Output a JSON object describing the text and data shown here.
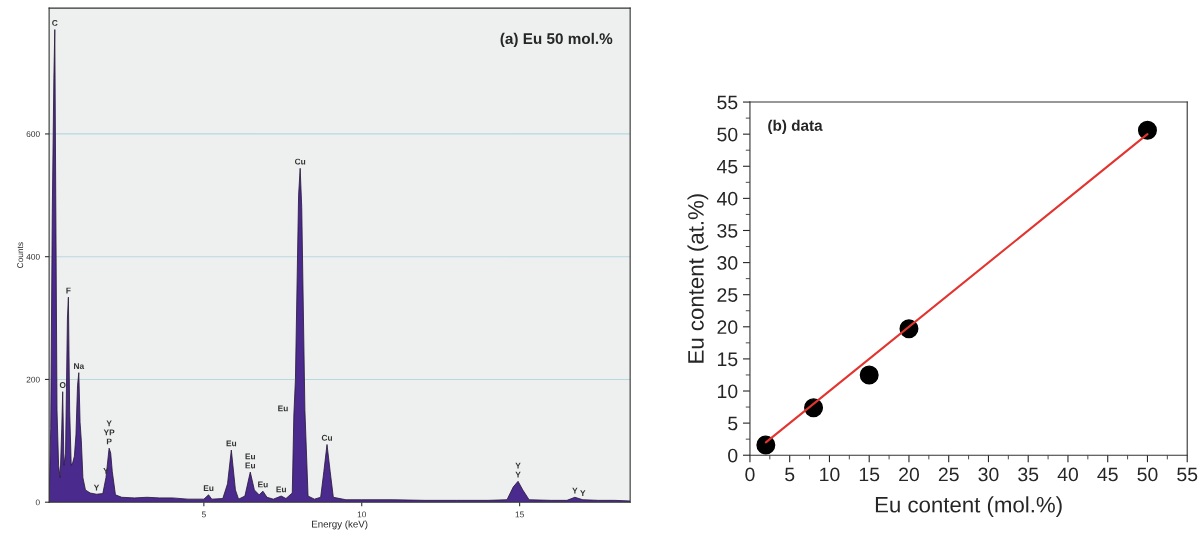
{
  "chart_data": [
    {
      "type": "area",
      "title": "(a) Eu 50 mol.%",
      "xlabel": "Energy (keV)",
      "ylabel": "Counts",
      "xlim": [
        0.1,
        18.5
      ],
      "ylim": [
        0,
        805
      ],
      "xticks": [
        5,
        10,
        15
      ],
      "yticks": [
        0,
        200,
        400,
        600
      ],
      "grid": "y",
      "series": [
        {
          "color": "#4a2a8c",
          "x": [
            0.1,
            0.15,
            0.2,
            0.25,
            0.28,
            0.31,
            0.35,
            0.4,
            0.45,
            0.5,
            0.53,
            0.57,
            0.62,
            0.68,
            0.71,
            0.75,
            0.8,
            0.85,
            0.9,
            0.95,
            1.0,
            1.04,
            1.08,
            1.12,
            1.17,
            1.25,
            1.4,
            1.6,
            1.8,
            1.9,
            2.0,
            2.05,
            2.1,
            2.2,
            2.4,
            2.8,
            3.2,
            3.6,
            4.0,
            4.5,
            5.0,
            5.15,
            5.25,
            5.6,
            5.75,
            5.87,
            6.0,
            6.1,
            6.3,
            6.47,
            6.6,
            6.75,
            6.87,
            7.0,
            7.2,
            7.45,
            7.6,
            7.8,
            7.85,
            7.9,
            8.0,
            8.05,
            8.1,
            8.2,
            8.3,
            8.5,
            8.7,
            8.8,
            8.9,
            9.0,
            9.1,
            9.5,
            10,
            11,
            12,
            13,
            14,
            14.6,
            14.8,
            14.95,
            15.1,
            15.3,
            16,
            16.5,
            16.75,
            17,
            17.5,
            18,
            18.5
          ],
          "values": [
            0,
            120,
            470,
            690,
            770,
            500,
            150,
            60,
            40,
            120,
            180,
            60,
            80,
            300,
            334,
            150,
            60,
            65,
            75,
            110,
            190,
            211,
            130,
            100,
            40,
            20,
            15,
            13,
            14,
            40,
            88,
            80,
            50,
            12,
            8,
            7,
            8,
            7,
            7,
            5,
            5,
            12,
            5,
            6,
            30,
            85,
            20,
            5,
            10,
            49,
            20,
            12,
            18,
            8,
            5,
            10,
            6,
            15,
            142,
            200,
            500,
            544,
            480,
            150,
            10,
            5,
            8,
            50,
            94,
            50,
            8,
            4,
            4,
            4,
            3,
            3,
            3,
            4,
            25,
            34,
            20,
            4,
            3,
            3,
            8,
            4,
            3,
            3,
            2
          ]
        }
      ],
      "annotations": [
        {
          "text": "C",
          "x": 0.28,
          "y": 770
        },
        {
          "text": "O",
          "x": 0.53,
          "y": 180
        },
        {
          "text": "F",
          "x": 0.71,
          "y": 334
        },
        {
          "text": "Na",
          "x": 1.04,
          "y": 211
        },
        {
          "text": "P",
          "x": 2.0,
          "y": 88
        },
        {
          "text": "YP",
          "x": 2.0,
          "y": 88
        },
        {
          "text": "Y",
          "x": 2.0,
          "y": 88
        },
        {
          "text": "Y",
          "x": 1.9,
          "y": 40
        },
        {
          "text": "Y",
          "x": 1.6,
          "y": 13
        },
        {
          "text": "Eu",
          "x": 5.15,
          "y": 12
        },
        {
          "text": "Eu",
          "x": 5.87,
          "y": 85
        },
        {
          "text": "Eu",
          "x": 6.47,
          "y": 49
        },
        {
          "text": "Eu",
          "x": 6.47,
          "y": 49
        },
        {
          "text": "Eu",
          "x": 6.87,
          "y": 18
        },
        {
          "text": "Eu",
          "x": 7.45,
          "y": 10
        },
        {
          "text": "Eu",
          "x": 7.85,
          "y": 142
        },
        {
          "text": "Cu",
          "x": 8.05,
          "y": 544
        },
        {
          "text": "Cu",
          "x": 8.9,
          "y": 94
        },
        {
          "text": "Y",
          "x": 14.95,
          "y": 34
        },
        {
          "text": "Y",
          "x": 14.95,
          "y": 34
        },
        {
          "text": "Y",
          "x": 16.75,
          "y": 8
        },
        {
          "text": "Y",
          "x": 17,
          "y": 4
        }
      ]
    },
    {
      "type": "scatter",
      "title": "(b) data",
      "xlabel": "Eu content (mol.%)",
      "ylabel": "Eu content (at.%)",
      "xlim": [
        0,
        55
      ],
      "ylim": [
        0,
        55
      ],
      "xticks": [
        0,
        5,
        10,
        15,
        20,
        25,
        30,
        35,
        40,
        45,
        50,
        55
      ],
      "yticks": [
        0,
        5,
        10,
        15,
        20,
        25,
        30,
        35,
        40,
        45,
        50,
        55
      ],
      "series": [
        {
          "type": "line",
          "color": "#e3342f",
          "x": [
            2,
            50
          ],
          "values": [
            2,
            50
          ]
        },
        {
          "type": "scatter",
          "color": "#000000",
          "marker": "circle",
          "x": [
            2,
            8,
            15,
            20,
            50
          ],
          "values": [
            1.6,
            7.4,
            12.5,
            19.7,
            50.6
          ]
        }
      ]
    }
  ]
}
